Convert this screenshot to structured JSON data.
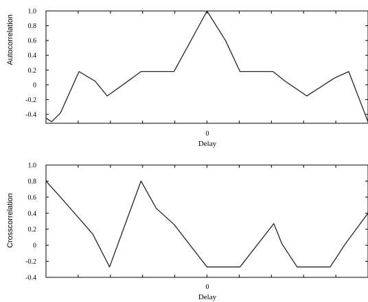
{
  "chart_data": [
    {
      "type": "line",
      "title": "",
      "xlabel": "Delay",
      "ylabel": "Autocorrelation",
      "x_tick_labels": [
        {
          "x": 0,
          "label": "0"
        }
      ],
      "y_tick_labels": [
        "1.0",
        "0.8",
        "0.6",
        "0.4",
        "0.2",
        "0",
        "-0.2",
        "-0.4"
      ],
      "y_ticks": [
        1.0,
        0.8,
        0.6,
        0.4,
        0.2,
        0,
        -0.2,
        -0.4
      ],
      "xlim": [
        -20,
        20
      ],
      "ylim": [
        -0.52,
        1.0
      ],
      "x_ticks": [
        -16,
        -12,
        -8,
        -4,
        0,
        4,
        8,
        12,
        16
      ],
      "grid": false,
      "series": [
        {
          "x": [
            -20,
            -19.3,
            -18.2,
            -15.9,
            -13.9,
            -12.4,
            -10.2,
            -8.2,
            -6.6,
            -4.1,
            -2,
            0,
            2.3,
            4.1,
            8.2,
            9.7,
            12.4,
            15.8,
            17.6,
            20
          ],
          "values": [
            -0.45,
            -0.5,
            -0.38,
            0.18,
            0.05,
            -0.15,
            0.02,
            0.18,
            0.18,
            0.18,
            0.6,
            1.0,
            0.6,
            0.18,
            0.18,
            0.05,
            -0.15,
            0.09,
            0.18,
            -0.5
          ]
        }
      ]
    },
    {
      "type": "line",
      "title": "",
      "xlabel": "Delay",
      "ylabel": "Crosscorrelation",
      "x_tick_labels": [
        {
          "x": 0,
          "label": "0"
        }
      ],
      "y_tick_labels": [
        "1.0",
        "0.8",
        "0.6",
        "0.4",
        "0.2",
        "0",
        "-0.2",
        "-0.4"
      ],
      "y_ticks": [
        1.0,
        0.8,
        0.6,
        0.4,
        0.2,
        0,
        -0.2,
        -0.4
      ],
      "xlim": [
        -20,
        20
      ],
      "ylim": [
        -0.4,
        1.0
      ],
      "x_ticks": [
        -16,
        -12,
        -8,
        -4,
        0,
        4,
        8,
        12,
        16
      ],
      "grid": false,
      "series": [
        {
          "x": [
            -20,
            -18.2,
            -16.1,
            -14.2,
            -12.1,
            -8.2,
            -6.3,
            -4.1,
            0,
            2,
            4.1,
            8.3,
            9.3,
            11.2,
            15.3,
            17.2,
            20
          ],
          "values": [
            0.8,
            0.6,
            0.36,
            0.14,
            -0.27,
            0.8,
            0.46,
            0.26,
            -0.27,
            -0.27,
            -0.27,
            0.27,
            0.02,
            -0.27,
            -0.27,
            0.02,
            0.4
          ]
        }
      ]
    }
  ]
}
